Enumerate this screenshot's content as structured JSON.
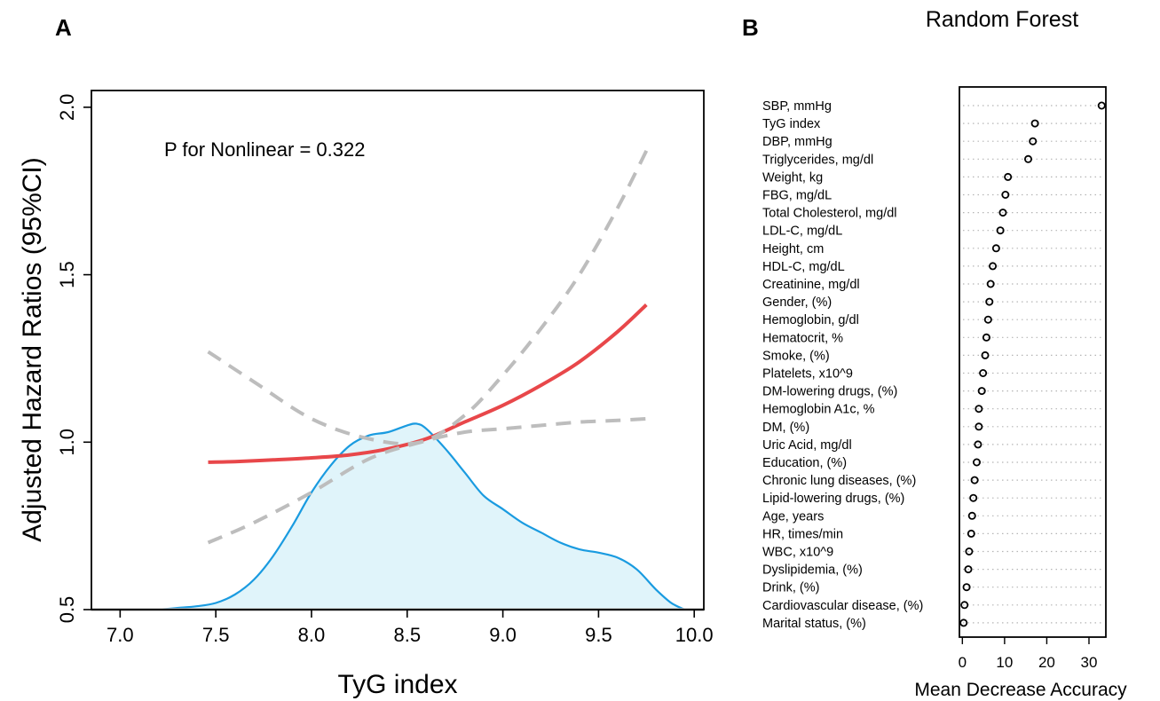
{
  "panels": {
    "a_label": "A",
    "b_label": "B"
  },
  "colors": {
    "hr_line": "#e8474a",
    "ci_line": "#bdbdbd",
    "density_line": "#1a9be0",
    "density_fill": "#e0f4fa",
    "reference_line": "#c0c0c0",
    "dot_stroke": "#000000"
  },
  "chart_data": [
    {
      "type": "line",
      "panel": "A",
      "title": "",
      "annotation": "P for Nonlinear = 0.322",
      "xlabel": "TyG index",
      "ylabel": "Adjusted Hazard Ratios (95%CI)",
      "xlim": [
        6.85,
        10.05
      ],
      "ylim": [
        0.5,
        2.05
      ],
      "xticks": [
        7.0,
        7.5,
        8.0,
        8.5,
        9.0,
        9.5,
        10.0
      ],
      "xtick_labels": [
        "7.0",
        "7.5",
        "8.0",
        "8.5",
        "9.0",
        "9.5",
        "10.0"
      ],
      "yticks": [
        0.5,
        1.0,
        1.5,
        2.0
      ],
      "ytick_labels": [
        "0.5",
        "1.0",
        "1.5",
        "2.0"
      ],
      "grid": false,
      "reference_y": 0.5,
      "series": [
        {
          "role": "hazard-ratio",
          "style": "solid",
          "x": [
            7.46,
            7.6,
            7.8,
            8.0,
            8.2,
            8.4,
            8.6,
            8.8,
            9.0,
            9.2,
            9.4,
            9.6,
            9.75
          ],
          "y": [
            0.94,
            0.942,
            0.947,
            0.953,
            0.962,
            0.98,
            1.01,
            1.06,
            1.11,
            1.17,
            1.24,
            1.33,
            1.41
          ]
        },
        {
          "role": "ci-upper",
          "style": "dashed",
          "x": [
            7.46,
            7.7,
            8.0,
            8.3,
            8.57,
            8.8,
            9.0,
            9.2,
            9.4,
            9.6,
            9.75
          ],
          "y": [
            1.27,
            1.18,
            1.07,
            1.01,
            1.0,
            1.08,
            1.2,
            1.34,
            1.5,
            1.7,
            1.87
          ]
        },
        {
          "role": "ci-lower",
          "style": "dashed",
          "x": [
            7.46,
            7.7,
            8.0,
            8.3,
            8.57,
            8.8,
            9.0,
            9.2,
            9.4,
            9.6,
            9.75
          ],
          "y": [
            0.7,
            0.76,
            0.85,
            0.95,
            1.0,
            1.03,
            1.04,
            1.05,
            1.06,
            1.065,
            1.07
          ]
        }
      ],
      "density": {
        "x": [
          7.2,
          7.3,
          7.4,
          7.5,
          7.6,
          7.7,
          7.8,
          7.9,
          8.0,
          8.1,
          8.2,
          8.3,
          8.4,
          8.5,
          8.55,
          8.6,
          8.7,
          8.8,
          8.9,
          9.0,
          9.1,
          9.2,
          9.3,
          9.4,
          9.5,
          9.6,
          9.7,
          9.8,
          9.88,
          9.95
        ],
        "y": [
          0.5,
          0.505,
          0.51,
          0.52,
          0.545,
          0.59,
          0.66,
          0.75,
          0.85,
          0.93,
          0.99,
          1.02,
          1.03,
          1.05,
          1.055,
          1.04,
          0.98,
          0.91,
          0.84,
          0.8,
          0.76,
          0.73,
          0.7,
          0.68,
          0.67,
          0.655,
          0.62,
          0.56,
          0.52,
          0.5
        ]
      }
    },
    {
      "type": "scatter",
      "panel": "B",
      "title": "Random Forest",
      "xlabel": "Mean Decrease Accuracy",
      "ylabel": "",
      "xlim": [
        -0.7,
        34.0
      ],
      "xticks": [
        0,
        10,
        20,
        30
      ],
      "xtick_labels": [
        "0",
        "10",
        "20",
        "30"
      ],
      "grid": true,
      "categories": [
        "SBP, mmHg",
        "TyG index",
        "DBP, mmHg",
        "Triglycerides, mg/dl",
        "Weight, kg",
        "FBG, mg/dL",
        "Total Cholesterol, mg/dl",
        "LDL-C, mg/dL",
        "Height, cm",
        "HDL-C, mg/dL",
        "Creatinine, mg/dl",
        "Gender, (%)",
        "Hemoglobin, g/dl",
        "Hematocrit, %",
        "Smoke, (%)",
        "Platelets, x10^9",
        "DM-lowering drugs, (%)",
        "Hemoglobin A1c, %",
        "DM, (%)",
        "Uric Acid, mg/dl",
        "Education, (%)",
        "Chronic lung diseases, (%)",
        "Lipid-lowering drugs, (%)",
        "Age, years",
        "HR, times/min",
        "WBC, x10^9",
        "Dyslipidemia, (%)",
        "Drink, (%)",
        "Cardiovascular disease, (%)",
        "Marital status, (%)"
      ],
      "values": [
        33.0,
        17.2,
        16.7,
        15.6,
        10.8,
        10.2,
        9.6,
        9.0,
        8.0,
        7.2,
        6.7,
        6.4,
        6.1,
        5.7,
        5.4,
        4.9,
        4.6,
        3.9,
        3.9,
        3.7,
        3.4,
        2.9,
        2.6,
        2.3,
        2.1,
        1.6,
        1.4,
        1.0,
        0.5,
        0.3
      ]
    }
  ]
}
